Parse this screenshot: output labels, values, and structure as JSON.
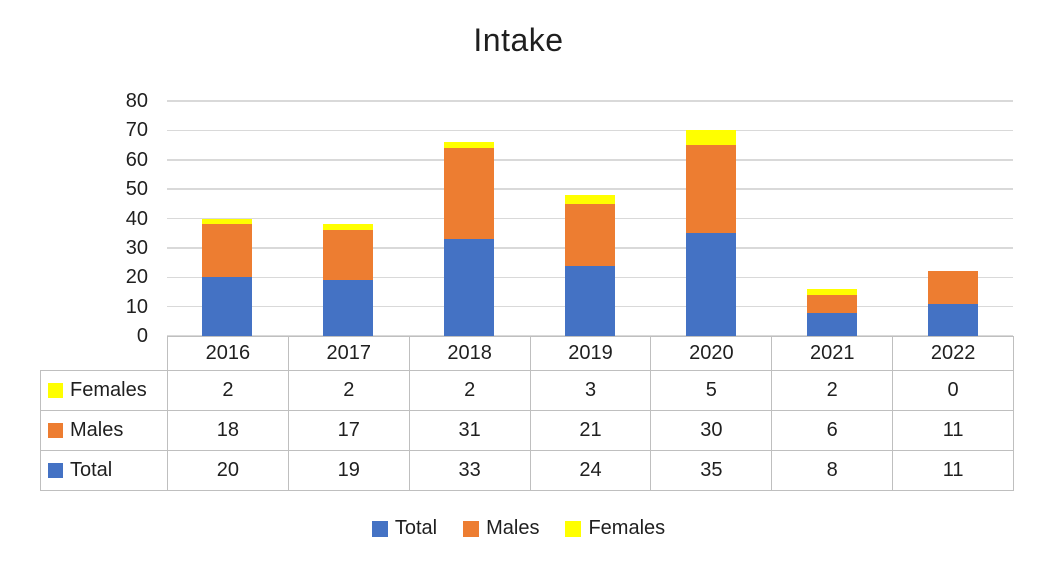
{
  "chart_data": {
    "type": "bar",
    "stacked": true,
    "title": "Intake",
    "categories": [
      "2016",
      "2017",
      "2018",
      "2019",
      "2020",
      "2021",
      "2022"
    ],
    "series": [
      {
        "name": "Total",
        "color": "#4472C4",
        "values": [
          20,
          19,
          33,
          24,
          35,
          8,
          11
        ]
      },
      {
        "name": "Males",
        "color": "#ED7D31",
        "values": [
          18,
          17,
          31,
          21,
          30,
          6,
          11
        ]
      },
      {
        "name": "Females",
        "color": "#FFFF00",
        "values": [
          2,
          2,
          2,
          3,
          5,
          2,
          0
        ]
      }
    ],
    "stack_totals": [
      40,
      38,
      66,
      48,
      70,
      16,
      22
    ],
    "ylim": [
      0,
      80
    ],
    "yticks": [
      0,
      10,
      20,
      30,
      40,
      50,
      60,
      70,
      80
    ],
    "grid": true,
    "legend": [
      "Total",
      "Males",
      "Females"
    ],
    "legend_position": "bottom",
    "data_table": {
      "shown": true,
      "row_order": [
        "Females",
        "Males",
        "Total"
      ]
    },
    "colors": {
      "gridline": "#D9D9D9",
      "table_border": "#BFBFBF",
      "text": "#1F1F1F",
      "background": "#FFFFFF"
    }
  }
}
